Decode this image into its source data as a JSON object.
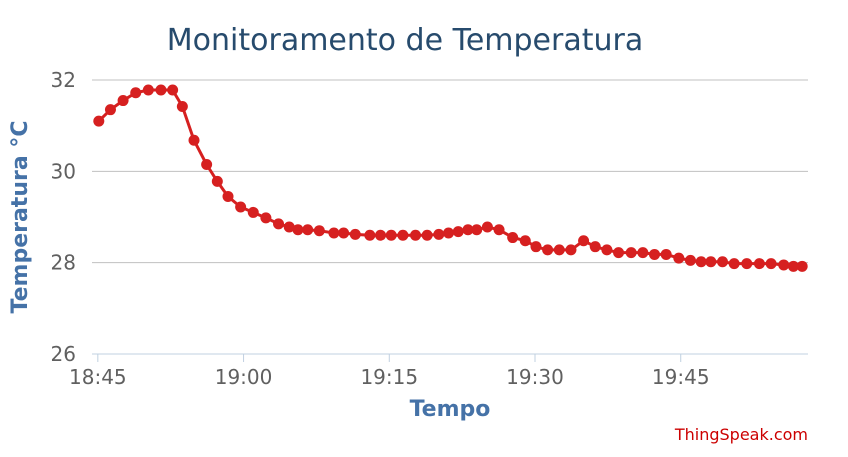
{
  "chart_data": {
    "type": "line",
    "title": "Monitoramento de Temperatura",
    "xlabel": "Tempo",
    "ylabel": "Temperatura °C",
    "x_tick_labels": [
      "18:45",
      "19:00",
      "19:15",
      "19:30",
      "19:45"
    ],
    "x_tick_minutes": [
      0,
      15,
      30,
      45,
      60
    ],
    "xlim_minutes": [
      -0.6,
      73.1
    ],
    "y_ticks": [
      26,
      28,
      30,
      32
    ],
    "ylim": [
      26,
      32
    ],
    "grid": true,
    "series": [
      {
        "color": "#d62020",
        "x_minutes": [
          0.1,
          1.3,
          2.6,
          3.9,
          5.2,
          6.5,
          7.7,
          8.7,
          9.9,
          11.2,
          12.3,
          13.4,
          14.7,
          16.0,
          17.3,
          18.6,
          19.7,
          20.6,
          21.6,
          22.8,
          24.3,
          25.3,
          26.5,
          28.0,
          29.1,
          30.2,
          31.4,
          32.7,
          33.9,
          35.1,
          36.1,
          37.1,
          38.1,
          39.0,
          40.1,
          41.3,
          42.7,
          44.0,
          45.1,
          46.3,
          47.5,
          48.7,
          50.0,
          51.2,
          52.4,
          53.6,
          54.9,
          56.1,
          57.3,
          58.5,
          59.8,
          61.0,
          62.1,
          63.1,
          64.3,
          65.5,
          66.8,
          68.1,
          69.3,
          70.6,
          71.6,
          72.5
        ],
        "values": [
          31.1,
          31.35,
          31.55,
          31.72,
          31.78,
          31.78,
          31.78,
          31.42,
          30.68,
          30.15,
          29.78,
          29.45,
          29.22,
          29.1,
          28.98,
          28.85,
          28.78,
          28.72,
          28.72,
          28.7,
          28.65,
          28.65,
          28.62,
          28.6,
          28.6,
          28.6,
          28.6,
          28.6,
          28.6,
          28.62,
          28.65,
          28.68,
          28.72,
          28.72,
          28.78,
          28.72,
          28.55,
          28.48,
          28.35,
          28.28,
          28.28,
          28.28,
          28.48,
          28.35,
          28.28,
          28.22,
          28.22,
          28.22,
          28.18,
          28.18,
          28.1,
          28.05,
          28.02,
          28.02,
          28.02,
          27.98,
          27.98,
          27.98,
          27.98,
          27.95,
          27.92,
          27.92
        ]
      }
    ],
    "credits": "ThingSpeak.com"
  }
}
